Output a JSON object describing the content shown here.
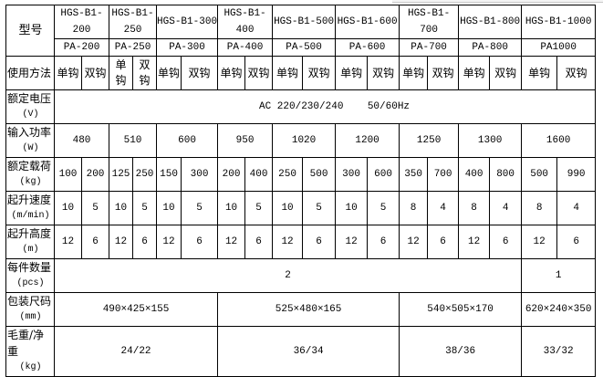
{
  "table": {
    "model_label": "型号",
    "models": [
      "HGS-B1-200",
      "HGS-B1-250",
      "HGS-B1-300",
      "HGS-B1-400",
      "HGS-B1-500",
      "HGS-B1-600",
      "HGS-B1-700",
      "HGS-B1-800",
      "HGS-B1-1000"
    ],
    "pa_models": [
      "PA-200",
      "PA-250",
      "PA-300",
      "PA-400",
      "PA-500",
      "PA-600",
      "PA-700",
      "PA-800",
      "PA1000"
    ],
    "usage": {
      "label": "使用方法",
      "single": "单钩",
      "double": "双钩"
    },
    "voltage": {
      "label": "额定电压",
      "unit": "(V)",
      "value": "AC 220/230/240    50/60Hz"
    },
    "power": {
      "label": "输入功率",
      "unit": "(W)",
      "values": [
        "480",
        "510",
        "600",
        "950",
        "1020",
        "1200",
        "1250",
        "1300",
        "1600"
      ]
    },
    "load": {
      "label": "额定载荷",
      "unit": "(kg)",
      "values": [
        "100",
        "200",
        "125",
        "250",
        "150",
        "300",
        "200",
        "400",
        "250",
        "500",
        "300",
        "600",
        "350",
        "700",
        "400",
        "800",
        "500",
        "990"
      ]
    },
    "speed": {
      "label": "起升速度",
      "unit": "(m/min)",
      "values": [
        "10",
        "5",
        "10",
        "5",
        "10",
        "5",
        "10",
        "5",
        "10",
        "5",
        "10",
        "5",
        "8",
        "4",
        "8",
        "4",
        "8",
        "4"
      ]
    },
    "height": {
      "label": "起升高度",
      "unit": "(m)",
      "values": [
        "12",
        "6",
        "12",
        "6",
        "12",
        "6",
        "12",
        "6",
        "12",
        "6",
        "12",
        "6",
        "12",
        "6",
        "12",
        "6",
        "12",
        "6"
      ]
    },
    "quantity": {
      "label": "每件数量",
      "unit": "(pcs)",
      "values": [
        "2",
        "1"
      ]
    },
    "package": {
      "label": "包装尺码",
      "unit": "(mm)",
      "values": [
        "490×425×155",
        "525×480×165",
        "540×505×170",
        "620×240×350"
      ]
    },
    "weight": {
      "label": "毛重/净重",
      "unit": "(kg)",
      "values": [
        "24/22",
        "36/34",
        "38/36",
        "33/32"
      ]
    }
  }
}
